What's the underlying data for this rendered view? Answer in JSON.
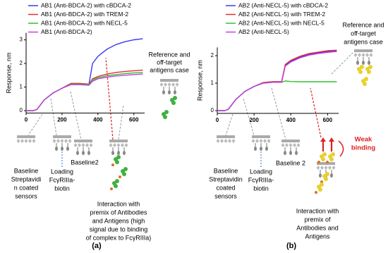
{
  "chart_data": [
    {
      "type": "line",
      "y_label": "Response, nm",
      "panel_label": "(a)",
      "x": [
        0,
        40,
        60,
        100,
        150,
        200,
        250,
        300,
        350,
        370,
        400,
        450,
        500,
        550,
        600,
        650
      ],
      "series": [
        {
          "name": "AB1 (Anti-BDCA-2) with cBDCA-2",
          "color": "#3a3af0",
          "values": [
            0,
            0,
            0.05,
            0.45,
            0.75,
            0.95,
            1.15,
            1.15,
            1.12,
            2.0,
            2.3,
            2.6,
            2.8,
            2.92,
            3.0,
            3.05
          ]
        },
        {
          "name": "AB1 (Anti-BDCA-2) with TREM-2",
          "color": "#e03030",
          "values": [
            0,
            0,
            0.05,
            0.45,
            0.75,
            0.95,
            1.15,
            1.15,
            1.12,
            1.35,
            1.45,
            1.55,
            1.62,
            1.66,
            1.69,
            1.72
          ]
        },
        {
          "name": "AB1 (Anti-BDCA-2) with NECL-5",
          "color": "#30c030",
          "values": [
            0,
            0,
            0.05,
            0.45,
            0.75,
            0.95,
            1.12,
            1.12,
            1.1,
            1.3,
            1.4,
            1.48,
            1.53,
            1.57,
            1.6,
            1.62
          ]
        },
        {
          "name": "AB1 (Anti-BDCA-2)",
          "color": "#c040e0",
          "values": [
            0,
            0,
            0.05,
            0.45,
            0.75,
            0.95,
            1.1,
            1.1,
            1.08,
            1.25,
            1.35,
            1.42,
            1.47,
            1.5,
            1.53,
            1.55
          ]
        }
      ],
      "xlim": [
        0,
        660
      ],
      "ylim": [
        -0.1,
        3.3
      ],
      "xticks": [
        0,
        200,
        400,
        600
      ],
      "yticks": [
        0,
        1,
        2,
        3
      ],
      "annotations": [
        [
          "Reference and",
          "off-target",
          "antigens case"
        ],
        [
          "Baseline",
          "Streptavidi",
          "n coated",
          "sensors"
        ],
        [
          "Loading",
          "FcγRIIIa-",
          "biotin"
        ],
        [
          "Baseline2"
        ],
        [
          "Interaction with",
          "premix of Antibodies",
          "and Antigens (high",
          "signal due to binding",
          "of complex to FcγRIIIa)"
        ]
      ]
    },
    {
      "type": "line",
      "y_label": "Response, nm",
      "panel_label": "(b)",
      "x": [
        0,
        40,
        60,
        100,
        150,
        200,
        250,
        300,
        350,
        370,
        400,
        450,
        500,
        550,
        600,
        650
      ],
      "series": [
        {
          "name": "AB2 (Anti-NECL-5) with cBDCA-2",
          "color": "#3a3af0",
          "values": [
            0,
            0,
            0.05,
            0.4,
            0.7,
            0.88,
            1.02,
            1.05,
            1.05,
            1.65,
            1.8,
            1.95,
            2.05,
            2.1,
            2.15,
            2.17
          ]
        },
        {
          "name": "AB2 (Anti-NECL-5) with TREM-2",
          "color": "#e03030",
          "values": [
            0,
            0,
            0.05,
            0.4,
            0.7,
            0.88,
            1.02,
            1.05,
            1.05,
            1.68,
            1.83,
            1.98,
            2.08,
            2.13,
            2.18,
            2.2
          ]
        },
        {
          "name": "AB2 (Anti-NECL-5) with NECL-5",
          "color": "#30c030",
          "values": [
            0,
            0,
            0.05,
            0.4,
            0.7,
            0.88,
            1.0,
            1.03,
            1.03,
            1.08,
            1.06,
            1.05,
            1.05,
            1.05,
            1.05,
            1.05
          ]
        },
        {
          "name": "AB2 (Anti-NECL-5)",
          "color": "#c040e0",
          "values": [
            0,
            0,
            0.05,
            0.4,
            0.7,
            0.88,
            1.0,
            1.03,
            1.03,
            1.62,
            1.77,
            1.92,
            2.02,
            2.08,
            2.12,
            2.15
          ]
        }
      ],
      "xlim": [
        0,
        660
      ],
      "ylim": [
        -0.1,
        2.3
      ],
      "xticks": [
        0,
        200,
        400,
        600
      ],
      "yticks": [
        0,
        1,
        2
      ],
      "annotations": [
        [
          "Reference and",
          "off-target",
          "antigens case"
        ],
        [
          "Baseline",
          "Streptavidin",
          "coated",
          "sensors"
        ],
        [
          "Loading",
          "FcγRIIIa-",
          "biotin"
        ],
        [
          "Baseline 2"
        ],
        [
          "Interaction with",
          "premix of",
          "Antibodies and",
          "Antigens"
        ],
        [
          "Weak",
          "binding"
        ]
      ]
    }
  ]
}
